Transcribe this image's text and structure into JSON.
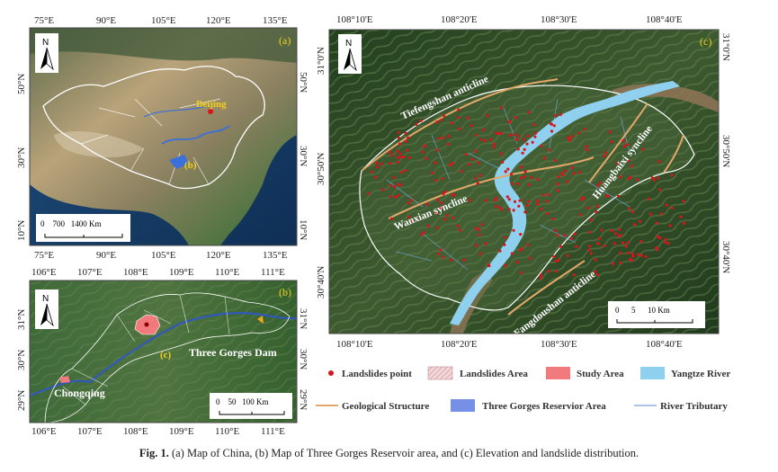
{
  "panel_a": {
    "letter": "(a)",
    "top_ticks": [
      "75°E",
      "90°E",
      "105°E",
      "120°E",
      "135°E"
    ],
    "bottom_ticks": [
      "75°E",
      "90°E",
      "105°E",
      "120°E",
      "135°E"
    ],
    "left_ticks": [
      "50°N",
      "30°N",
      "10°N"
    ],
    "right_ticks": [
      "50°N",
      "30°N",
      "10°N"
    ],
    "label_beijing": "Beijing",
    "label_b": "(b)",
    "scalebar_label": "0    700   1400 Km",
    "north_label": "N"
  },
  "panel_b": {
    "letter": "(b)",
    "top_ticks": [
      "106°E",
      "107°E",
      "108°E",
      "109°E",
      "110°E",
      "111°E"
    ],
    "bottom_ticks": [
      "106°E",
      "107°E",
      "108°E",
      "109°E",
      "110°E",
      "111°E"
    ],
    "left_ticks": [
      "31°N",
      "30°N",
      "29°N"
    ],
    "right_ticks": [
      "31°N",
      "30°N",
      "29°N"
    ],
    "label_c": "(c)",
    "label_dam": "Three Gorges Dam",
    "label_chongqing": "Chongqing",
    "scalebar_label": "0    50   100 Km",
    "north_label": "N"
  },
  "panel_c": {
    "letter": "(c)",
    "top_ticks": [
      "108°10'E",
      "108°20'E",
      "108°30'E",
      "108°40'E"
    ],
    "bottom_ticks": [
      "108°10'E",
      "108°20'E",
      "108°30'E",
      "108°40'E"
    ],
    "left_ticks": [
      "31°0'N",
      "30°50'N",
      "30°40'N"
    ],
    "right_ticks": [
      "31°0'N",
      "30°50'N",
      "30°40'N"
    ],
    "label_tiefengshan": "Tiefengshan anticline",
    "label_wanxian": "Wanxian syncline",
    "label_huangbaixi": "Huangbaixi syncline",
    "label_fangdoushan": "Fangdoushan anticline",
    "scalebar_label": "0      5      10 Km",
    "north_label": "N"
  },
  "legend": {
    "items": [
      {
        "label": "Landslides point",
        "symbol": "dot",
        "color": "#d9151c"
      },
      {
        "label": "Landslides Area",
        "symbol": "hatch",
        "color": "#e8b5b8"
      },
      {
        "label": "Study Area",
        "symbol": "fill",
        "color": "#f17a7e"
      },
      {
        "label": "Yangtze River",
        "symbol": "fill",
        "color": "#8fd0ee"
      },
      {
        "label": "Geological Structure",
        "symbol": "line",
        "color": "#e2a86b"
      },
      {
        "label": "Three Gorges Reservior Area",
        "symbol": "fill",
        "color": "#7590e6"
      },
      {
        "label": "River Tributary",
        "symbol": "line",
        "color": "#8db3dc"
      }
    ]
  },
  "caption": {
    "fig_label": "Fig. 1.",
    "text": "(a) Map of China, (b) Map of Three Gorges Reservoir area, and (c) Elevation and landslide distribution."
  },
  "colors": {
    "river": "#8fd0ee",
    "landslide": "#d9151c",
    "structure": "#e2a86b",
    "boundary": "#ffffff",
    "annotation": "#f2d11a"
  }
}
